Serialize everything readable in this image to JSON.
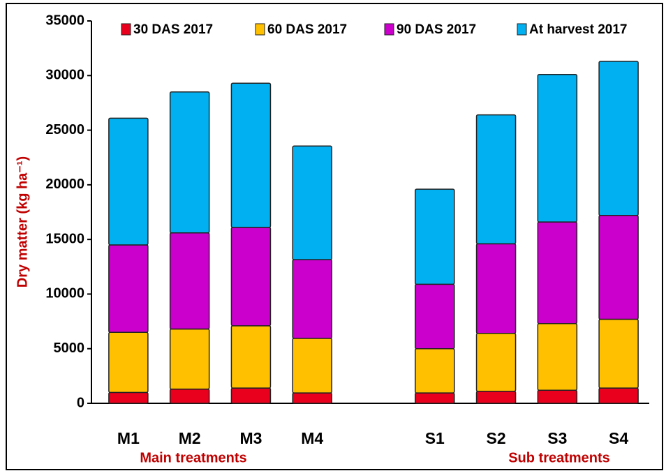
{
  "chart_data": {
    "type": "stacked_bar",
    "y_label": "Dry matter (kg ha⁻¹)",
    "categories": [
      "M1",
      "M2",
      "M3",
      "M4",
      null,
      "S1",
      "S2",
      "S3",
      "S4"
    ],
    "series": [
      {
        "name": "30 DAS 2017",
        "color": "#e8001c",
        "values": [
          1000,
          1300,
          1400,
          950,
          null,
          950,
          1100,
          1200,
          1400
        ]
      },
      {
        "name": "60 DAS 2017",
        "color": "#ffc000",
        "values": [
          5500,
          5500,
          5700,
          5000,
          null,
          4050,
          5300,
          6100,
          6300
        ]
      },
      {
        "name": "90 DAS 2017",
        "color": "#cc00cc",
        "values": [
          8000,
          8800,
          9000,
          7200,
          null,
          5900,
          8200,
          9300,
          9500
        ]
      },
      {
        "name": "At harvest 2017",
        "color": "#00b0f0",
        "values": [
          11600,
          12900,
          13200,
          10400,
          null,
          8700,
          11800,
          13500,
          14100
        ]
      }
    ],
    "annotations": [
      "Main treatments",
      "Sub treatments"
    ],
    "ylim": [
      0,
      35000
    ],
    "yticks": [
      0,
      5000,
      10000,
      15000,
      20000,
      25000,
      30000,
      35000
    ],
    "grid": false,
    "legend": "top"
  }
}
